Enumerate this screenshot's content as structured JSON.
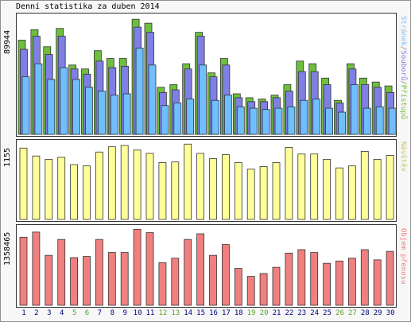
{
  "title": "Denní statistika za duben 2014",
  "colors": {
    "pristupu": "#6fbf3e",
    "souboru": "#7f7fe5",
    "stranek": "#6fbfff",
    "navstev": "#ffff99",
    "objem": "#f08080",
    "weekend_day": "#5a9e2e",
    "work_day": "#000080"
  },
  "panel1": {
    "max_label": "89944",
    "side_labels": {
      "stranek": "Stránek",
      "souboru": "Souborů",
      "pristupu": "Přístupů",
      "sep": "/"
    }
  },
  "panel2": {
    "max_label": "1155",
    "side_label": "Návštěv"
  },
  "panel3": {
    "max_label": "1358465",
    "side_label": "Objem přenosu"
  },
  "days": [
    "1",
    "2",
    "3",
    "4",
    "5",
    "6",
    "7",
    "8",
    "9",
    "10",
    "11",
    "12",
    "13",
    "14",
    "15",
    "16",
    "17",
    "18",
    "19",
    "20",
    "21",
    "22",
    "23",
    "24",
    "25",
    "26",
    "27",
    "28",
    "29",
    "30"
  ],
  "weekend_days": [
    "5",
    "6",
    "12",
    "13",
    "19",
    "20",
    "26",
    "27"
  ],
  "chart_data": {
    "type": "bar",
    "categories": [
      "1",
      "2",
      "3",
      "4",
      "5",
      "6",
      "7",
      "8",
      "9",
      "10",
      "11",
      "12",
      "13",
      "14",
      "15",
      "16",
      "17",
      "18",
      "19",
      "20",
      "21",
      "22",
      "23",
      "24",
      "25",
      "26",
      "27",
      "28",
      "29",
      "30"
    ],
    "pristupu": [
      72000,
      80000,
      67000,
      81000,
      53000,
      50000,
      64000,
      58000,
      58000,
      88000,
      85000,
      36000,
      38000,
      54000,
      78000,
      47000,
      58000,
      31000,
      28000,
      27000,
      30000,
      38000,
      56000,
      54000,
      43000,
      26000,
      54000,
      43000,
      40000,
      37000
    ],
    "souboru": [
      65000,
      75000,
      61000,
      75000,
      50000,
      46000,
      56000,
      51000,
      52000,
      82000,
      78000,
      32000,
      34000,
      50000,
      75000,
      44000,
      53000,
      28000,
      25000,
      25000,
      28000,
      33000,
      48000,
      48000,
      38000,
      24000,
      50000,
      38000,
      36000,
      32000
    ],
    "stranek": [
      44000,
      54000,
      42000,
      51000,
      42000,
      36000,
      33000,
      30000,
      31000,
      66000,
      53000,
      22000,
      24000,
      27000,
      53000,
      26000,
      30000,
      21000,
      20000,
      19000,
      20000,
      21000,
      26000,
      27000,
      20000,
      17000,
      38000,
      20000,
      21000,
      20000
    ],
    "navstev": [
      1080,
      960,
      910,
      940,
      830,
      810,
      1020,
      1100,
      1120,
      1050,
      1000,
      860,
      870,
      1140,
      1000,
      920,
      980,
      860,
      760,
      800,
      860,
      1090,
      990,
      990,
      910,
      780,
      810,
      1030,
      910,
      970
    ],
    "objem": [
      1200000,
      1290000,
      880000,
      1160000,
      840000,
      860000,
      1160000,
      930000,
      930000,
      1340000,
      1280000,
      750000,
      830000,
      1160000,
      1260000,
      880000,
      1070000,
      650000,
      510000,
      560000,
      670000,
      920000,
      980000,
      930000,
      740000,
      780000,
      830000,
      980000,
      800000,
      950000
    ],
    "ylim_hits": [
      0,
      89944
    ],
    "ylim_visits": [
      0,
      1155
    ],
    "ylim_bytes": [
      0,
      1358465
    ]
  }
}
